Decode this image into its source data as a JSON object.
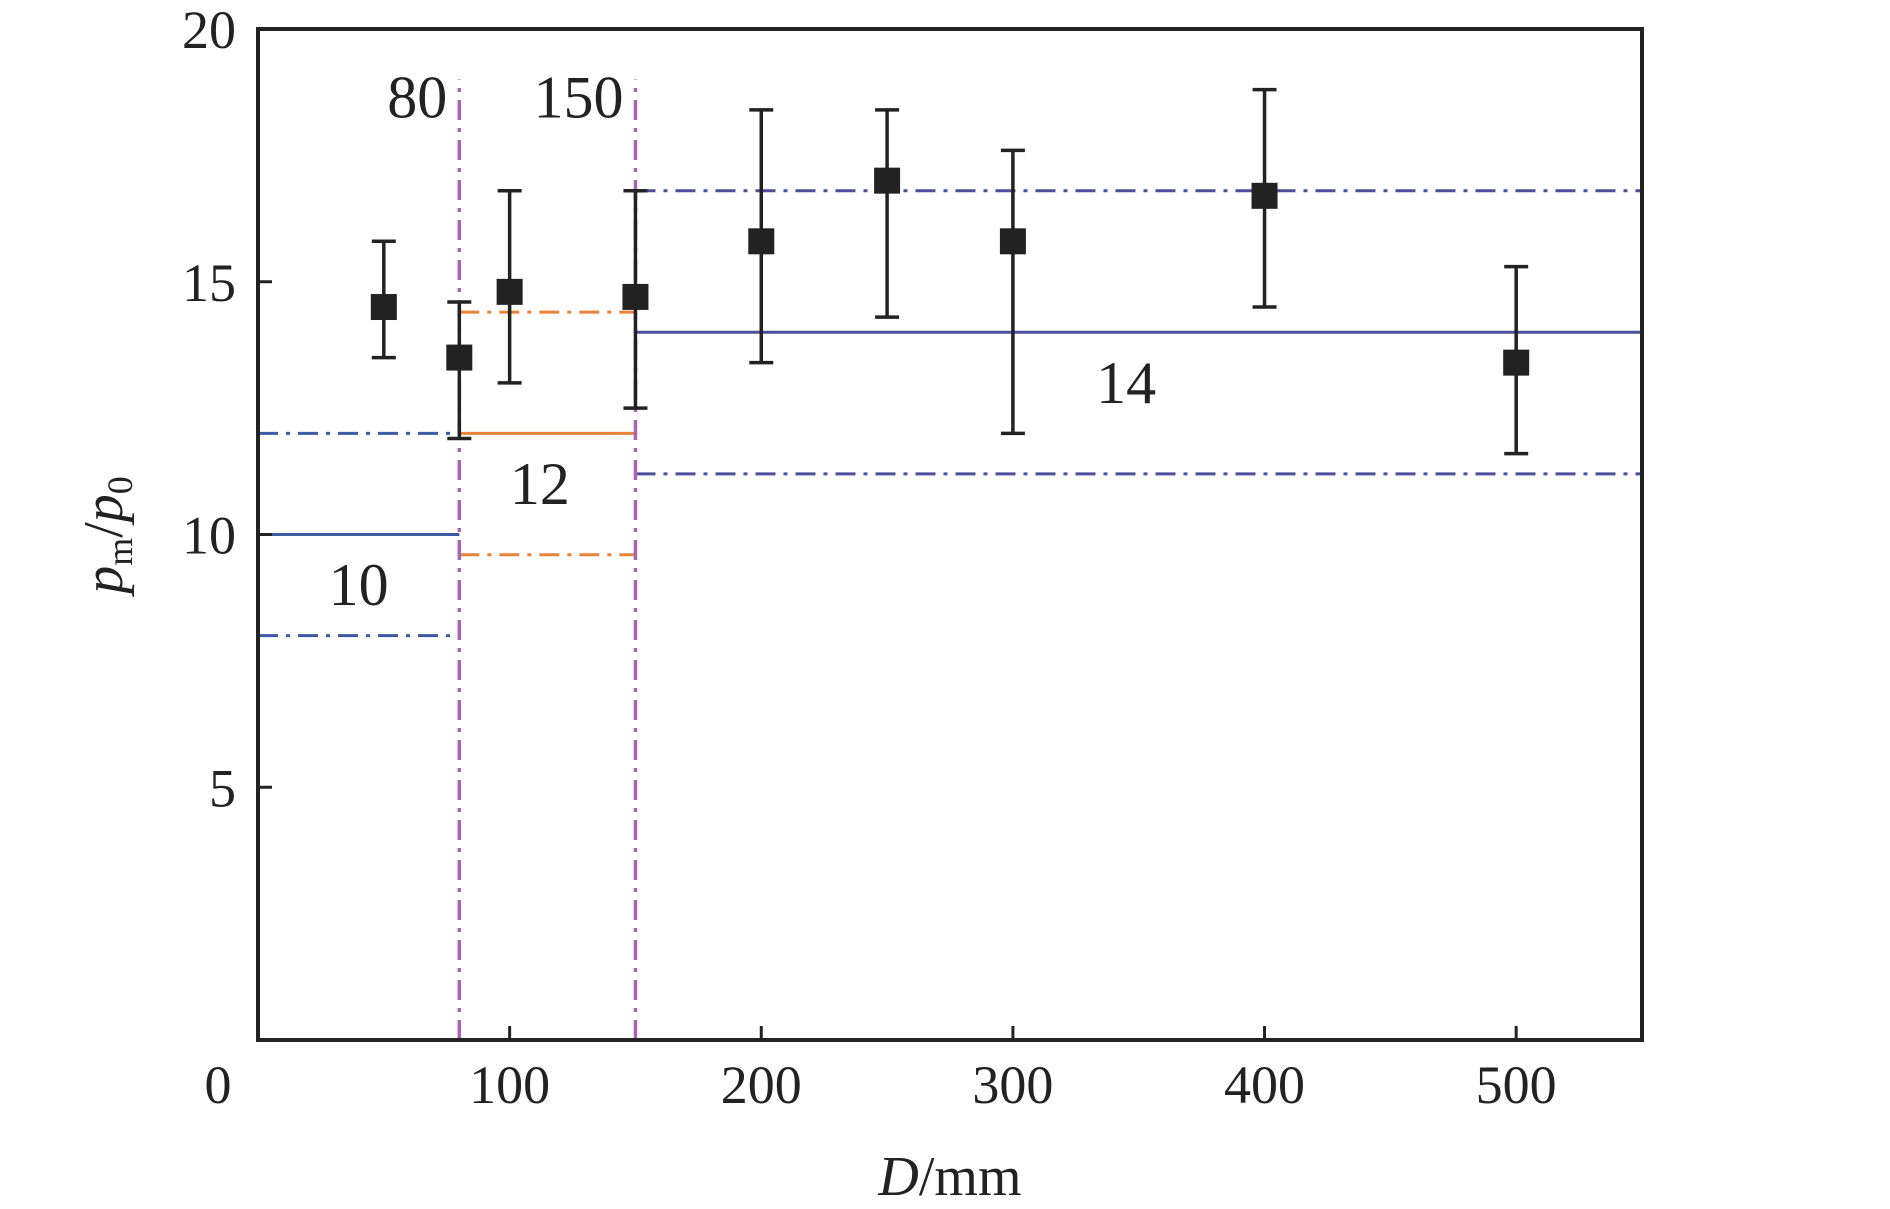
{
  "chart_data": {
    "type": "scatter",
    "xlabel": {
      "var": "D",
      "unit": "/mm"
    },
    "ylabel": {
      "num": "p",
      "num_sub": "m",
      "sep": "/",
      "den": "p",
      "den_sub": "0"
    },
    "xlim": [
      0,
      550
    ],
    "ylim": [
      0,
      20
    ],
    "x_ticks": [
      0,
      100,
      200,
      300,
      400,
      500
    ],
    "x_tick_labels": [
      "0",
      "100",
      "200",
      "300",
      "400",
      "500"
    ],
    "y_ticks": [
      5,
      10,
      15,
      20
    ],
    "y_tick_labels": [
      "5",
      "10",
      "15",
      "20"
    ],
    "grid": false,
    "points": [
      {
        "x": 50,
        "y": 14.5,
        "err_low": 13.5,
        "err_high": 15.8
      },
      {
        "x": 80,
        "y": 13.5,
        "err_low": 11.9,
        "err_high": 14.6
      },
      {
        "x": 100,
        "y": 14.8,
        "err_low": 13.0,
        "err_high": 16.8
      },
      {
        "x": 150,
        "y": 14.7,
        "err_low": 12.5,
        "err_high": 16.8
      },
      {
        "x": 200,
        "y": 15.8,
        "err_low": 13.4,
        "err_high": 18.4
      },
      {
        "x": 250,
        "y": 17.0,
        "err_low": 14.3,
        "err_high": 18.4
      },
      {
        "x": 300,
        "y": 15.8,
        "err_low": 12.0,
        "err_high": 17.6
      },
      {
        "x": 400,
        "y": 16.7,
        "err_low": 14.5,
        "err_high": 18.8
      },
      {
        "x": 500,
        "y": 13.4,
        "err_low": 11.6,
        "err_high": 15.3
      }
    ],
    "levels": [
      {
        "x_start": 0,
        "x_end": 80,
        "mean": 10,
        "low": 8,
        "high": 12,
        "color": "#3b5ba5",
        "label": "10",
        "label_x": 40,
        "label_y": 9.0
      },
      {
        "x_start": 80,
        "x_end": 150,
        "mean": 12,
        "low": 9.6,
        "high": 14.4,
        "color": "#e8833a",
        "label": "12",
        "label_x": 112,
        "label_y": 11.0
      },
      {
        "x_start": 150,
        "x_end": 550,
        "mean": 14,
        "low": 11.2,
        "high": 16.8,
        "color": "#4b4f9c",
        "label": "14",
        "label_x": 345,
        "label_y": 13.0
      }
    ],
    "boundaries": [
      {
        "x": 80,
        "label": "80",
        "color": "#a865b5"
      },
      {
        "x": 150,
        "label": "150",
        "color": "#a865b5"
      }
    ],
    "boundary_top": 19.0,
    "axis_color": "#222222",
    "marker_color": "#222222"
  }
}
